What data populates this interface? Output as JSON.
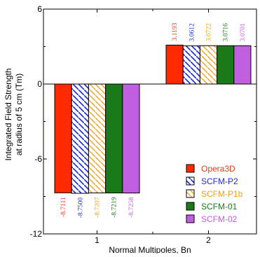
{
  "chart_data": {
    "type": "bar",
    "ylabel_line1": "Integrated Field Strength",
    "ylabel_line2": "at radius of 5 cm (Tm)",
    "xlabel": "Normal Multipoles, Bn",
    "categories": [
      "1",
      "2"
    ],
    "ylim": [
      -12,
      6
    ],
    "yticks": [
      "6",
      "0",
      "-6",
      "-12"
    ],
    "ytick_values": [
      6,
      0,
      -6,
      -12
    ],
    "legend_position": "lower-right",
    "series": [
      {
        "name": "Opera3D",
        "values": [
          -8.7111,
          3.1193
        ],
        "labels": [
          "-8.7111",
          "3.1193"
        ],
        "color": "#ff2a00",
        "text_color": "#ee3a1a",
        "pattern": "solid"
      },
      {
        "name": "SCFM-P2",
        "values": [
          -8.75,
          3.0612
        ],
        "labels": [
          "-8.7500",
          "3.0612"
        ],
        "color": "#1f2fd0",
        "text_color": "#1f2fd0",
        "pattern": "diag-blue"
      },
      {
        "name": "SCFM-P1b",
        "values": [
          -8.7207,
          3.0722
        ],
        "labels": [
          "-8.7207",
          "3.0722"
        ],
        "color": "#f0a020",
        "text_color": "#f0a020",
        "pattern": "diag-orange"
      },
      {
        "name": "SCFM-01",
        "values": [
          -8.7219,
          3.0716
        ],
        "labels": [
          "-8.7219",
          "3.0716"
        ],
        "color": "#1a7a1a",
        "text_color": "#1a7a1a",
        "pattern": "solid"
      },
      {
        "name": "SCFM-02",
        "values": [
          -8.7258,
          3.0701
        ],
        "labels": [
          "-8.7258",
          "3.0701"
        ],
        "color": "#c060e0",
        "text_color": "#c060e0",
        "pattern": "solid"
      }
    ]
  }
}
